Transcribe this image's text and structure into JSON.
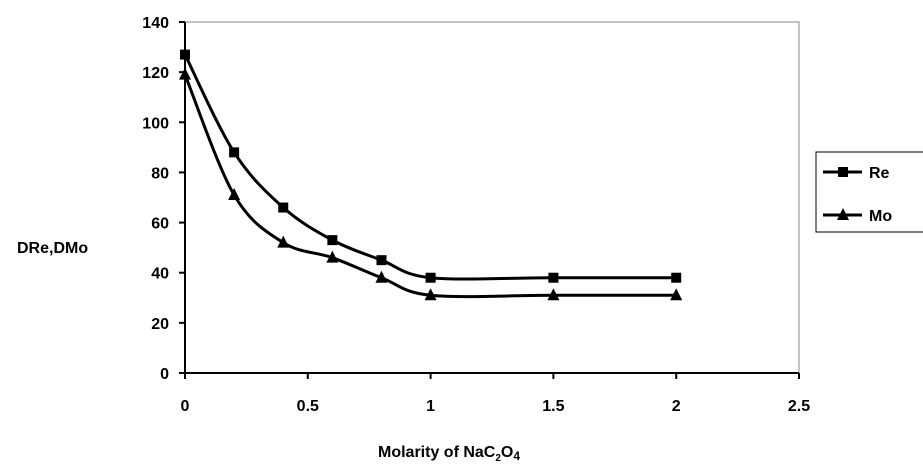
{
  "chart_data": {
    "type": "line",
    "title": "",
    "xlabel": "Molarity of NaC",
    "xlabel_sub1": "2",
    "xlabel_mid": "O",
    "xlabel_sub2": "4",
    "ylabel": "DRe,DMo",
    "xlim": [
      0,
      2.5
    ],
    "ylim": [
      0,
      140
    ],
    "x_ticks": [
      "0",
      "0.5",
      "1",
      "1.5",
      "2",
      "2.5"
    ],
    "y_ticks": [
      "0",
      "20",
      "40",
      "60",
      "80",
      "100",
      "120",
      "140"
    ],
    "grid": false,
    "smooth": true,
    "legend_position": "right",
    "series": [
      {
        "name": "Re",
        "marker": "square",
        "color": "#000000",
        "x": [
          0,
          0.2,
          0.4,
          0.6,
          0.8,
          1.0,
          1.5,
          2.0
        ],
        "y": [
          127,
          88,
          66,
          53,
          45,
          38,
          38,
          38
        ]
      },
      {
        "name": "Mo",
        "marker": "triangle",
        "color": "#000000",
        "x": [
          0,
          0.2,
          0.4,
          0.6,
          0.8,
          1.0,
          1.5,
          2.0
        ],
        "y": [
          119,
          71,
          52,
          46,
          38,
          31,
          31,
          31
        ]
      }
    ]
  }
}
